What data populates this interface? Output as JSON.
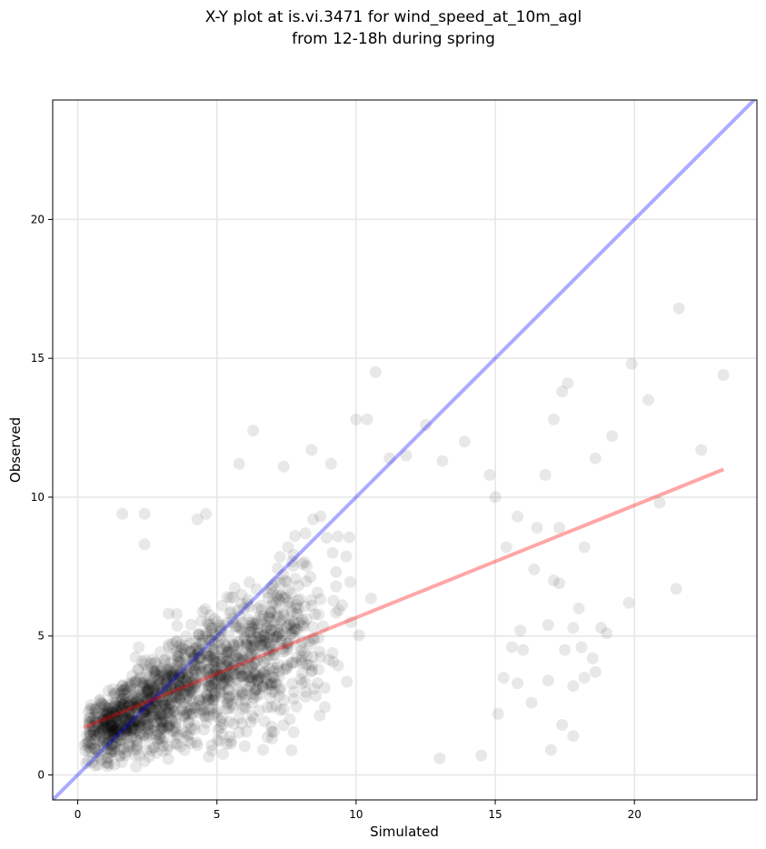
{
  "chart_data": {
    "type": "scatter",
    "title": [
      "X-Y plot at is.vi.3471 for wind_speed_at_10m_agl",
      "from 12-18h during spring"
    ],
    "xlabel": "Simulated",
    "ylabel": "Observed",
    "xlim": [
      -0.9,
      24.4
    ],
    "ylim": [
      -0.9,
      24.3
    ],
    "xticks": [
      0,
      5,
      10,
      15,
      20
    ],
    "yticks": [
      0,
      5,
      10,
      15,
      20
    ],
    "grid": true,
    "point_color": "#000000",
    "point_alpha": 0.09,
    "point_count": 1500,
    "reference_line": {
      "color": "#0000ff",
      "alpha": 0.33,
      "from": [
        -0.9,
        -0.9
      ],
      "to": [
        24.4,
        24.4
      ]
    },
    "fit_line": {
      "color": "#ff0000",
      "alpha": 0.35,
      "from": [
        0.2,
        1.7
      ],
      "to": [
        23.2,
        11.0
      ]
    },
    "outliers": [
      [
        21.6,
        16.8
      ],
      [
        10.7,
        14.5
      ],
      [
        19.9,
        14.8
      ],
      [
        23.2,
        14.4
      ],
      [
        17.6,
        14.1
      ],
      [
        17.4,
        13.8
      ],
      [
        20.5,
        13.5
      ],
      [
        10.0,
        12.8
      ],
      [
        10.4,
        12.8
      ],
      [
        12.5,
        12.6
      ],
      [
        19.2,
        12.2
      ],
      [
        22.4,
        11.7
      ],
      [
        17.1,
        12.8
      ],
      [
        18.6,
        11.4
      ],
      [
        13.9,
        12.0
      ],
      [
        20.9,
        9.8
      ],
      [
        21.5,
        6.7
      ],
      [
        19.8,
        6.2
      ],
      [
        17.0,
        0.9
      ],
      [
        17.4,
        1.8
      ],
      [
        17.8,
        1.4
      ],
      [
        14.5,
        0.7
      ],
      [
        16.3,
        2.6
      ],
      [
        15.1,
        2.2
      ],
      [
        13.0,
        0.6
      ],
      [
        16.9,
        3.4
      ],
      [
        17.8,
        3.2
      ],
      [
        18.6,
        3.7
      ],
      [
        18.5,
        4.2
      ],
      [
        18.2,
        3.5
      ],
      [
        19.0,
        5.1
      ],
      [
        18.8,
        5.3
      ],
      [
        18.1,
        4.6
      ],
      [
        17.8,
        5.3
      ],
      [
        17.5,
        4.5
      ],
      [
        17.3,
        6.9
      ],
      [
        17.1,
        7.0
      ],
      [
        16.8,
        10.8
      ],
      [
        15.8,
        9.3
      ],
      [
        16.4,
        7.4
      ],
      [
        16.0,
        4.5
      ],
      [
        15.6,
        4.6
      ],
      [
        15.3,
        3.5
      ],
      [
        15.8,
        3.3
      ],
      [
        15.9,
        5.2
      ],
      [
        16.9,
        5.4
      ],
      [
        17.3,
        8.9
      ],
      [
        16.5,
        8.9
      ],
      [
        15.4,
        8.2
      ],
      [
        15.0,
        10.0
      ],
      [
        14.8,
        10.8
      ],
      [
        18.2,
        8.2
      ],
      [
        18.0,
        6.0
      ],
      [
        1.6,
        9.4
      ],
      [
        2.4,
        9.4
      ],
      [
        2.4,
        8.3
      ],
      [
        4.6,
        9.4
      ],
      [
        4.3,
        9.2
      ],
      [
        6.3,
        12.4
      ],
      [
        5.8,
        11.2
      ],
      [
        8.4,
        11.7
      ],
      [
        9.1,
        11.2
      ],
      [
        7.4,
        11.1
      ],
      [
        11.2,
        11.4
      ],
      [
        11.8,
        11.5
      ],
      [
        13.1,
        11.3
      ]
    ]
  }
}
